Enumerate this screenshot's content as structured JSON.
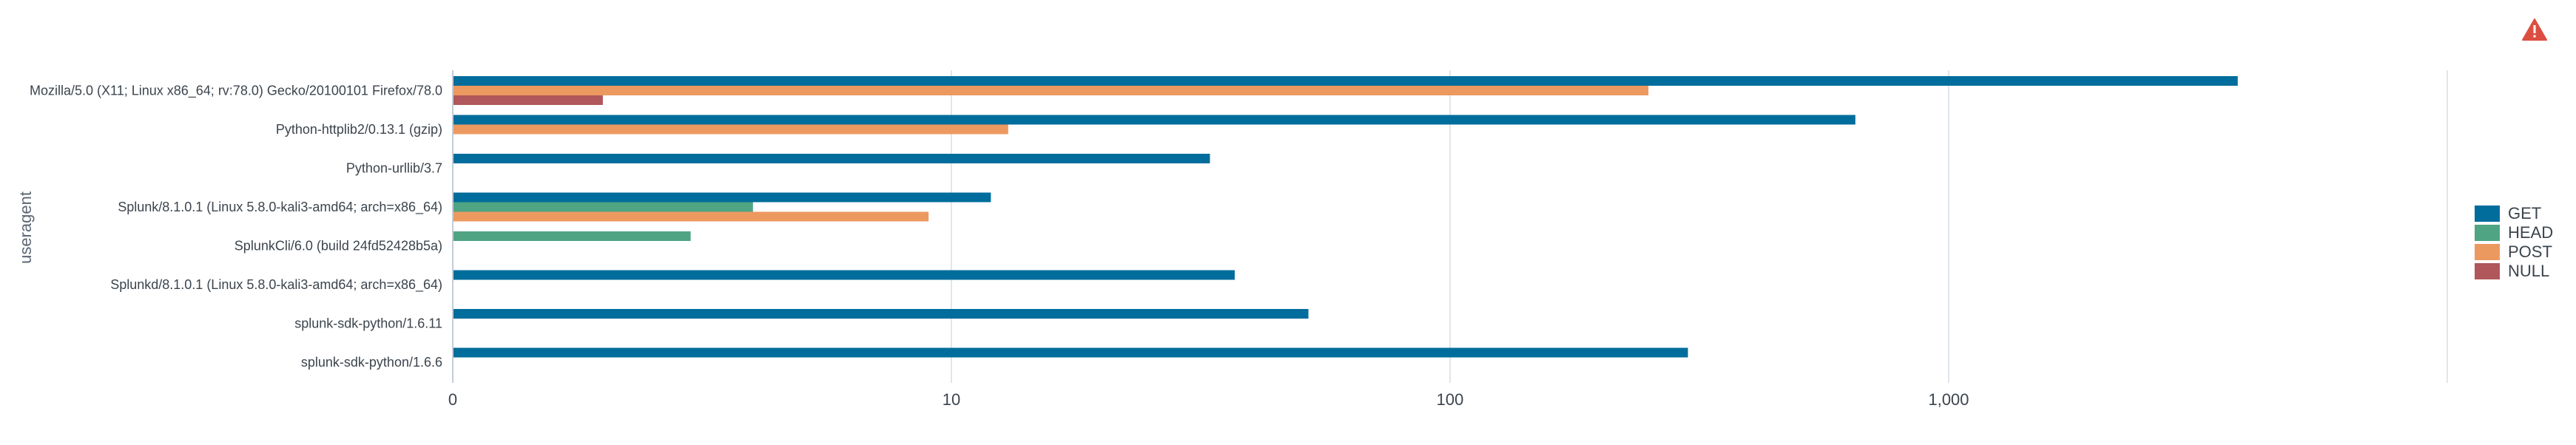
{
  "warning_icon": "warning-triangle-icon",
  "chart_data": {
    "type": "bar",
    "orientation": "horizontal",
    "scale": "log",
    "ylabel": "useragent",
    "xlabel": "",
    "categories": [
      "Mozilla/5.0 (X11; Linux x86_64; rv:78.0) Gecko/20100101 Firefox/78.0",
      "Python-httplib2/0.13.1 (gzip)",
      "Python-urllib/3.7",
      "Splunk/8.1.0.1 (Linux 5.8.0-kali3-amd64; arch=x86_64)",
      "SplunkCli/6.0 (build 24fd52428b5a)",
      "Splunkd/8.1.0.1 (Linux 5.8.0-kali3-amd64; arch=x86_64)",
      "splunk-sdk-python/1.6.11",
      "splunk-sdk-python/1.6.6"
    ],
    "series": [
      {
        "name": "GET",
        "color": "#006d9c",
        "values": [
          3800,
          650,
          33,
          12,
          null,
          37,
          52,
          300
        ]
      },
      {
        "name": "HEAD",
        "color": "#4fa484",
        "values": [
          null,
          null,
          null,
          4,
          3,
          null,
          null,
          null
        ]
      },
      {
        "name": "POST",
        "color": "#ec9960",
        "values": [
          250,
          13,
          null,
          9,
          null,
          null,
          null,
          null
        ]
      },
      {
        "name": "NULL",
        "color": "#af575a",
        "values": [
          2,
          null,
          null,
          null,
          null,
          null,
          null,
          null
        ]
      }
    ],
    "ticks": [
      {
        "value": 1,
        "label": "0"
      },
      {
        "value": 10,
        "label": "10"
      },
      {
        "value": 100,
        "label": "100"
      },
      {
        "value": 1000,
        "label": "1,000"
      },
      {
        "value": 10000,
        "label": ""
      }
    ],
    "xlim": [
      1,
      10000
    ],
    "grid": true,
    "legend_position": "right"
  }
}
